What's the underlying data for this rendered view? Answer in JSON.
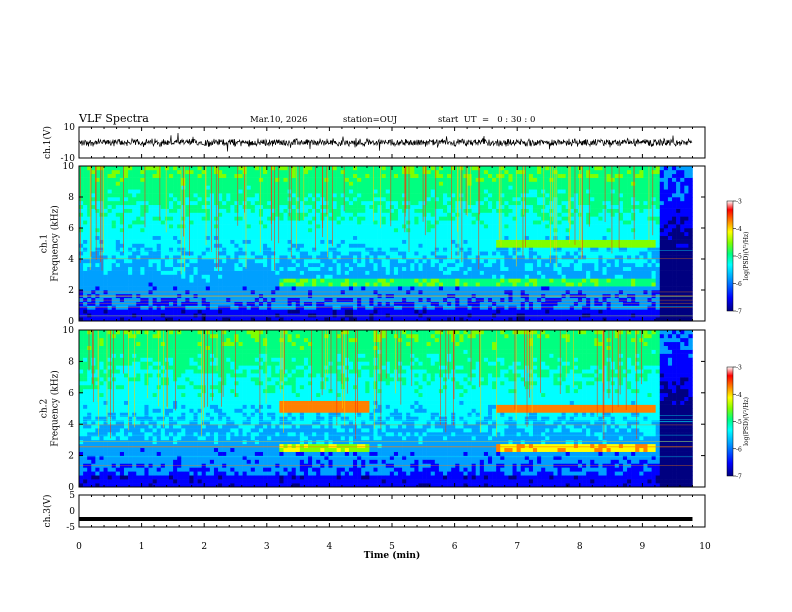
{
  "header": {
    "title": "VLF Spectra",
    "date": "Mar.10, 2026",
    "station": "station=OUJ",
    "start": "start  UT  =   0 : 30 : 0"
  },
  "colors": {
    "colormap": [
      "#000080",
      "#0000ff",
      "#00a0ff",
      "#00ffff",
      "#00ff80",
      "#80ff00",
      "#ffff00",
      "#ff8000",
      "#ff0000",
      "#ffffff"
    ]
  },
  "chart_data": [
    {
      "type": "line",
      "panel": "ch1-waveform",
      "ylabel": "ch.1(V)",
      "ylim": [
        -10,
        10
      ],
      "yticks": [
        "10",
        "-10"
      ],
      "x_range_min": [
        0,
        9.8
      ],
      "y_center": 0,
      "y_amplitude_approx": 2
    },
    {
      "type": "heatmap",
      "panel": "ch1-spectrogram",
      "ylabel": "ch.1\nFrequency (kHz)",
      "ylabel_lines": [
        "ch.1",
        "Frequency (kHz)"
      ],
      "ylim": [
        0,
        10
      ],
      "yticks": [
        "0",
        "2",
        "4",
        "6",
        "8",
        "10"
      ],
      "x_range_min": [
        0,
        9.8
      ],
      "colorbar": {
        "label": "log(PSD)(V²/Hz)",
        "range": [
          -7,
          -3
        ],
        "ticks": [
          "-3",
          "-4",
          "-5",
          "-6",
          "-7"
        ]
      },
      "features": [
        {
          "desc": "band",
          "t": [
            3.2,
            9.2
          ],
          "f_khz": 2.5,
          "level": -4.8
        },
        {
          "desc": "band",
          "t": [
            6.6,
            9.2
          ],
          "f_khz": 5.0,
          "level": -4.6
        }
      ]
    },
    {
      "type": "heatmap",
      "panel": "ch2-spectrogram",
      "ylabel": "ch.2\nFrequency (kHz)",
      "ylabel_lines": [
        "ch.2",
        "Frequency (kHz)"
      ],
      "ylim": [
        0,
        10
      ],
      "yticks": [
        "0",
        "2",
        "4",
        "6",
        "8",
        "10"
      ],
      "x_range_min": [
        0,
        9.8
      ],
      "colorbar": {
        "label": "log(PSD)(V²/Hz)",
        "range": [
          -7,
          -3
        ],
        "ticks": [
          "-3",
          "-4",
          "-5",
          "-6",
          "-7"
        ]
      },
      "features": [
        {
          "desc": "band",
          "t": [
            3.2,
            4.6
          ],
          "f_khz": 5.1,
          "level": -3.6
        },
        {
          "desc": "band",
          "t": [
            6.6,
            9.2
          ],
          "f_khz": 5.0,
          "level": -3.4
        },
        {
          "desc": "band",
          "t": [
            6.6,
            9.2
          ],
          "f_khz": 2.5,
          "level": -3.8
        },
        {
          "desc": "band",
          "t": [
            3.2,
            4.6
          ],
          "f_khz": 2.5,
          "level": -4.3
        }
      ]
    },
    {
      "type": "line",
      "panel": "ch3-waveform",
      "ylabel": "ch.3(V)",
      "ylim": [
        -5,
        5
      ],
      "yticks": [
        "5",
        "0",
        "-5"
      ],
      "x_range_min": [
        0,
        9.8
      ],
      "y_value": -2.5
    }
  ],
  "xaxis": {
    "label": "Time  (min)",
    "ticks": [
      "0",
      "1",
      "2",
      "3",
      "4",
      "5",
      "6",
      "7",
      "8",
      "9",
      "10"
    ],
    "range": [
      0,
      10
    ]
  }
}
